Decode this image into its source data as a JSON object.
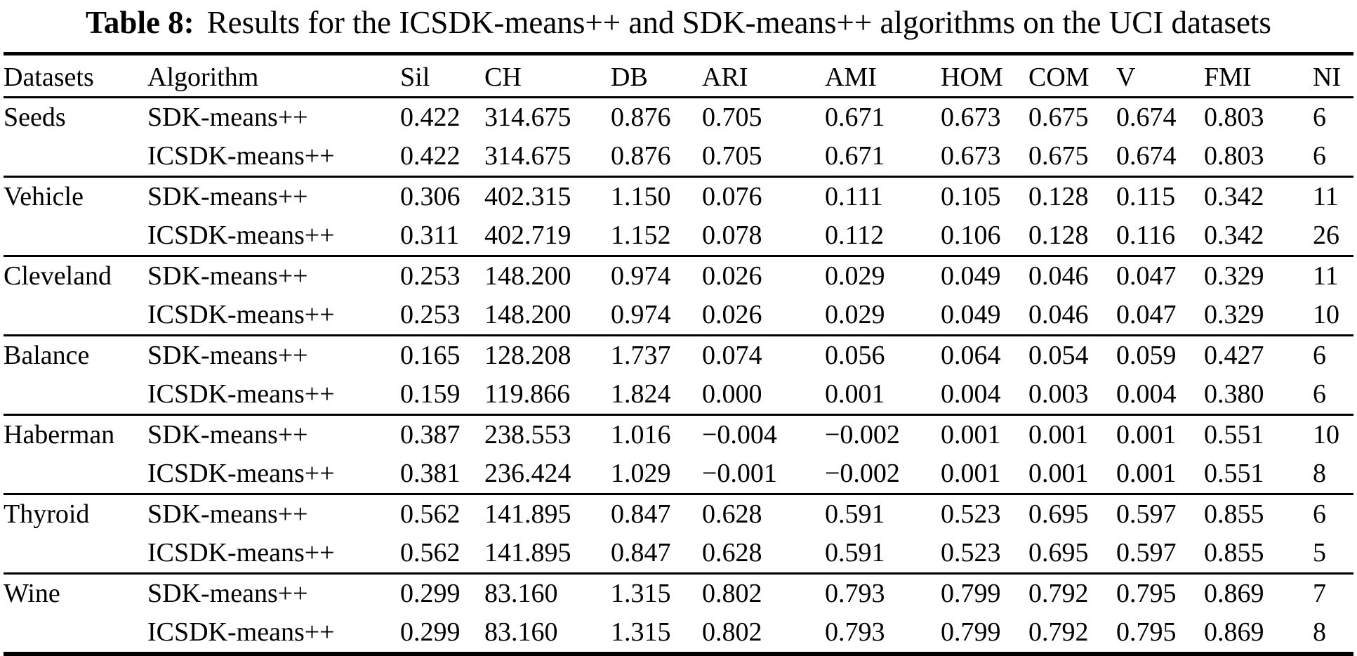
{
  "title": {
    "label": "Table 8:",
    "text": "Results for the ICSDK-means++ and SDK-means++ algorithms on the UCI datasets"
  },
  "table": {
    "columns": [
      "Datasets",
      "Algorithm",
      "Sil",
      "CH",
      "DB",
      "ARI",
      "AMI",
      "HOM",
      "COM",
      "V",
      "FMI",
      "NI"
    ],
    "groups": [
      {
        "dataset": "Seeds",
        "rows": [
          {
            "algorithm": "SDK-means++",
            "values": [
              "0.422",
              "314.675",
              "0.876",
              "0.705",
              "0.671",
              "0.673",
              "0.675",
              "0.674",
              "0.803",
              "6"
            ]
          },
          {
            "algorithm": "ICSDK-means++",
            "values": [
              "0.422",
              "314.675",
              "0.876",
              "0.705",
              "0.671",
              "0.673",
              "0.675",
              "0.674",
              "0.803",
              "6"
            ]
          }
        ]
      },
      {
        "dataset": "Vehicle",
        "rows": [
          {
            "algorithm": "SDK-means++",
            "values": [
              "0.306",
              "402.315",
              "1.150",
              "0.076",
              "0.111",
              "0.105",
              "0.128",
              "0.115",
              "0.342",
              "11"
            ]
          },
          {
            "algorithm": "ICSDK-means++",
            "values": [
              "0.311",
              "402.719",
              "1.152",
              "0.078",
              "0.112",
              "0.106",
              "0.128",
              "0.116",
              "0.342",
              "26"
            ]
          }
        ]
      },
      {
        "dataset": "Cleveland",
        "rows": [
          {
            "algorithm": "SDK-means++",
            "values": [
              "0.253",
              "148.200",
              "0.974",
              "0.026",
              "0.029",
              "0.049",
              "0.046",
              "0.047",
              "0.329",
              "11"
            ]
          },
          {
            "algorithm": "ICSDK-means++",
            "values": [
              "0.253",
              "148.200",
              "0.974",
              "0.026",
              "0.029",
              "0.049",
              "0.046",
              "0.047",
              "0.329",
              "10"
            ]
          }
        ]
      },
      {
        "dataset": "Balance",
        "rows": [
          {
            "algorithm": "SDK-means++",
            "values": [
              "0.165",
              "128.208",
              "1.737",
              "0.074",
              "0.056",
              "0.064",
              "0.054",
              "0.059",
              "0.427",
              "6"
            ]
          },
          {
            "algorithm": "ICSDK-means++",
            "values": [
              "0.159",
              "119.866",
              "1.824",
              "0.000",
              "0.001",
              "0.004",
              "0.003",
              "0.004",
              "0.380",
              "6"
            ]
          }
        ]
      },
      {
        "dataset": "Haberman",
        "rows": [
          {
            "algorithm": "SDK-means++",
            "values": [
              "0.387",
              "238.553",
              "1.016",
              "−0.004",
              "−0.002",
              "0.001",
              "0.001",
              "0.001",
              "0.551",
              "10"
            ]
          },
          {
            "algorithm": "ICSDK-means++",
            "values": [
              "0.381",
              "236.424",
              "1.029",
              "−0.001",
              "−0.002",
              "0.001",
              "0.001",
              "0.001",
              "0.551",
              "8"
            ]
          }
        ]
      },
      {
        "dataset": "Thyroid",
        "rows": [
          {
            "algorithm": "SDK-means++",
            "values": [
              "0.562",
              "141.895",
              "0.847",
              "0.628",
              "0.591",
              "0.523",
              "0.695",
              "0.597",
              "0.855",
              "6"
            ]
          },
          {
            "algorithm": "ICSDK-means++",
            "values": [
              "0.562",
              "141.895",
              "0.847",
              "0.628",
              "0.591",
              "0.523",
              "0.695",
              "0.597",
              "0.855",
              "5"
            ]
          }
        ]
      },
      {
        "dataset": "Wine",
        "rows": [
          {
            "algorithm": "SDK-means++",
            "values": [
              "0.299",
              "83.160",
              "1.315",
              "0.802",
              "0.793",
              "0.799",
              "0.792",
              "0.795",
              "0.869",
              "7"
            ]
          },
          {
            "algorithm": "ICSDK-means++",
            "values": [
              "0.299",
              "83.160",
              "1.315",
              "0.802",
              "0.793",
              "0.799",
              "0.792",
              "0.795",
              "0.869",
              "8"
            ]
          }
        ]
      }
    ]
  }
}
